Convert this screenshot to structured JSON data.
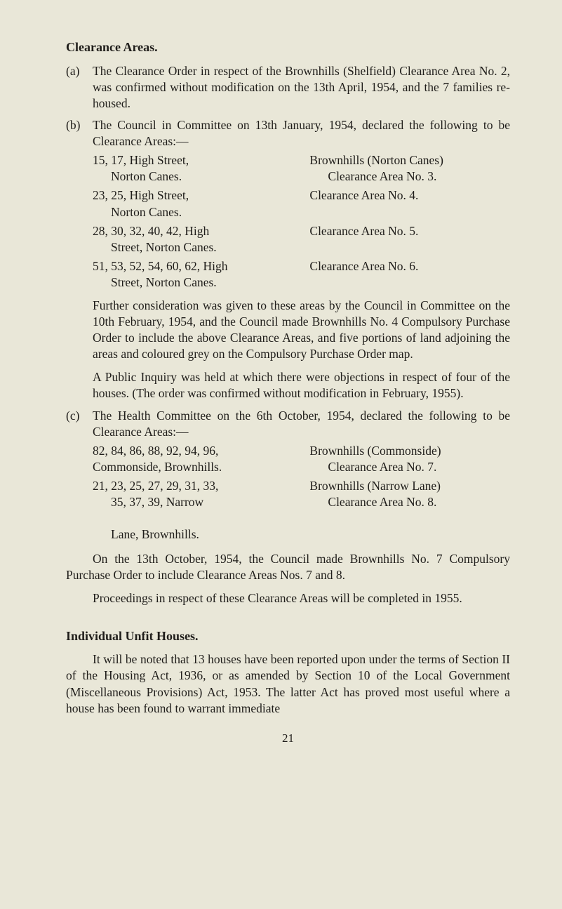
{
  "colors": {
    "background": "#e9e7d8",
    "text": "#1f1d1a"
  },
  "typography": {
    "body_fontsize_pt": 13,
    "heading_fontsize_pt": 13,
    "font_family": "Times New Roman"
  },
  "heading1": "Clearance Areas.",
  "items": {
    "a": {
      "label": "(a)",
      "text": "The Clearance Order in respect of the Brownhills (Shelfield) Clearance Area No. 2, was confirmed without modification on the 13th April, 1954, and the 7 families re-housed."
    },
    "b": {
      "label": "(b)",
      "intro": "The Council in Committee on 13th January, 1954, declared the following to be Clearance Areas:—",
      "rows": [
        {
          "left_line1": "15, 17, High Street,",
          "left_line2": "Norton Canes.",
          "right_line1": "Brownhills (Norton Canes)",
          "right_line2": "Clearance Area No. 3."
        },
        {
          "left_line1": "23, 25, High Street,",
          "left_line2": "Norton Canes.",
          "right_line1": "Clearance Area No. 4.",
          "right_line2": ""
        },
        {
          "left_line1": "28, 30, 32, 40, 42, High",
          "left_line2": "Street, Norton Canes.",
          "right_line1": "Clearance Area No. 5.",
          "right_line2": ""
        },
        {
          "left_line1": "51, 53, 52, 54, 60, 62, High",
          "left_line2": "Street, Norton Canes.",
          "right_line1": "Clearance Area No. 6.",
          "right_line2": ""
        }
      ],
      "para1": "Further consideration was given to these areas by the Council in Committee on the 10th February, 1954, and the Council made Brownhills No. 4 Compulsory Purchase Order to include the above Clearance Areas, and five portions of land adjoining the areas and coloured grey on the Compulsory Purchase Order map.",
      "para2": "A Public Inquiry was held at which there were objections in respect of four of the houses. (The order was confirmed without modification in February, 1955)."
    },
    "c": {
      "label": "(c)",
      "intro": "The Health Committee on the 6th October, 1954, declared the following to be Clearance Areas:—",
      "rows": [
        {
          "left_line1": "82, 84, 86, 88, 92, 94, 96,",
          "left_line2": "Commonside, Brownhills.",
          "right_line1": "Brownhills (Commonside)",
          "right_line2": "Clearance Area No. 7."
        },
        {
          "left_line1": "21, 23, 25, 27, 29, 31, 33,",
          "left_line2": "35, 37, 39, Narrow",
          "left_line3": "Lane, Brownhills.",
          "right_line1": "Brownhills (Narrow Lane)",
          "right_line2": "Clearance Area No. 8."
        }
      ]
    }
  },
  "para_after_c": "On the 13th October, 1954, the Council made Brownhills No. 7 Compulsory Purchase Order to include Clearance Areas Nos. 7 and 8.",
  "para_proceedings": "Proceedings in respect of these Clearance Areas will be completed in 1955.",
  "heading2": "Individual Unfit Houses.",
  "para_individual": "It will be noted that 13 houses have been reported upon under the terms of Section II of the Housing Act, 1936, or as amended by Section 10 of the Local Government (Miscellaneous Provisions) Act, 1953. The latter Act has proved most useful where a house has been found to warrant immediate",
  "page_number": "21"
}
